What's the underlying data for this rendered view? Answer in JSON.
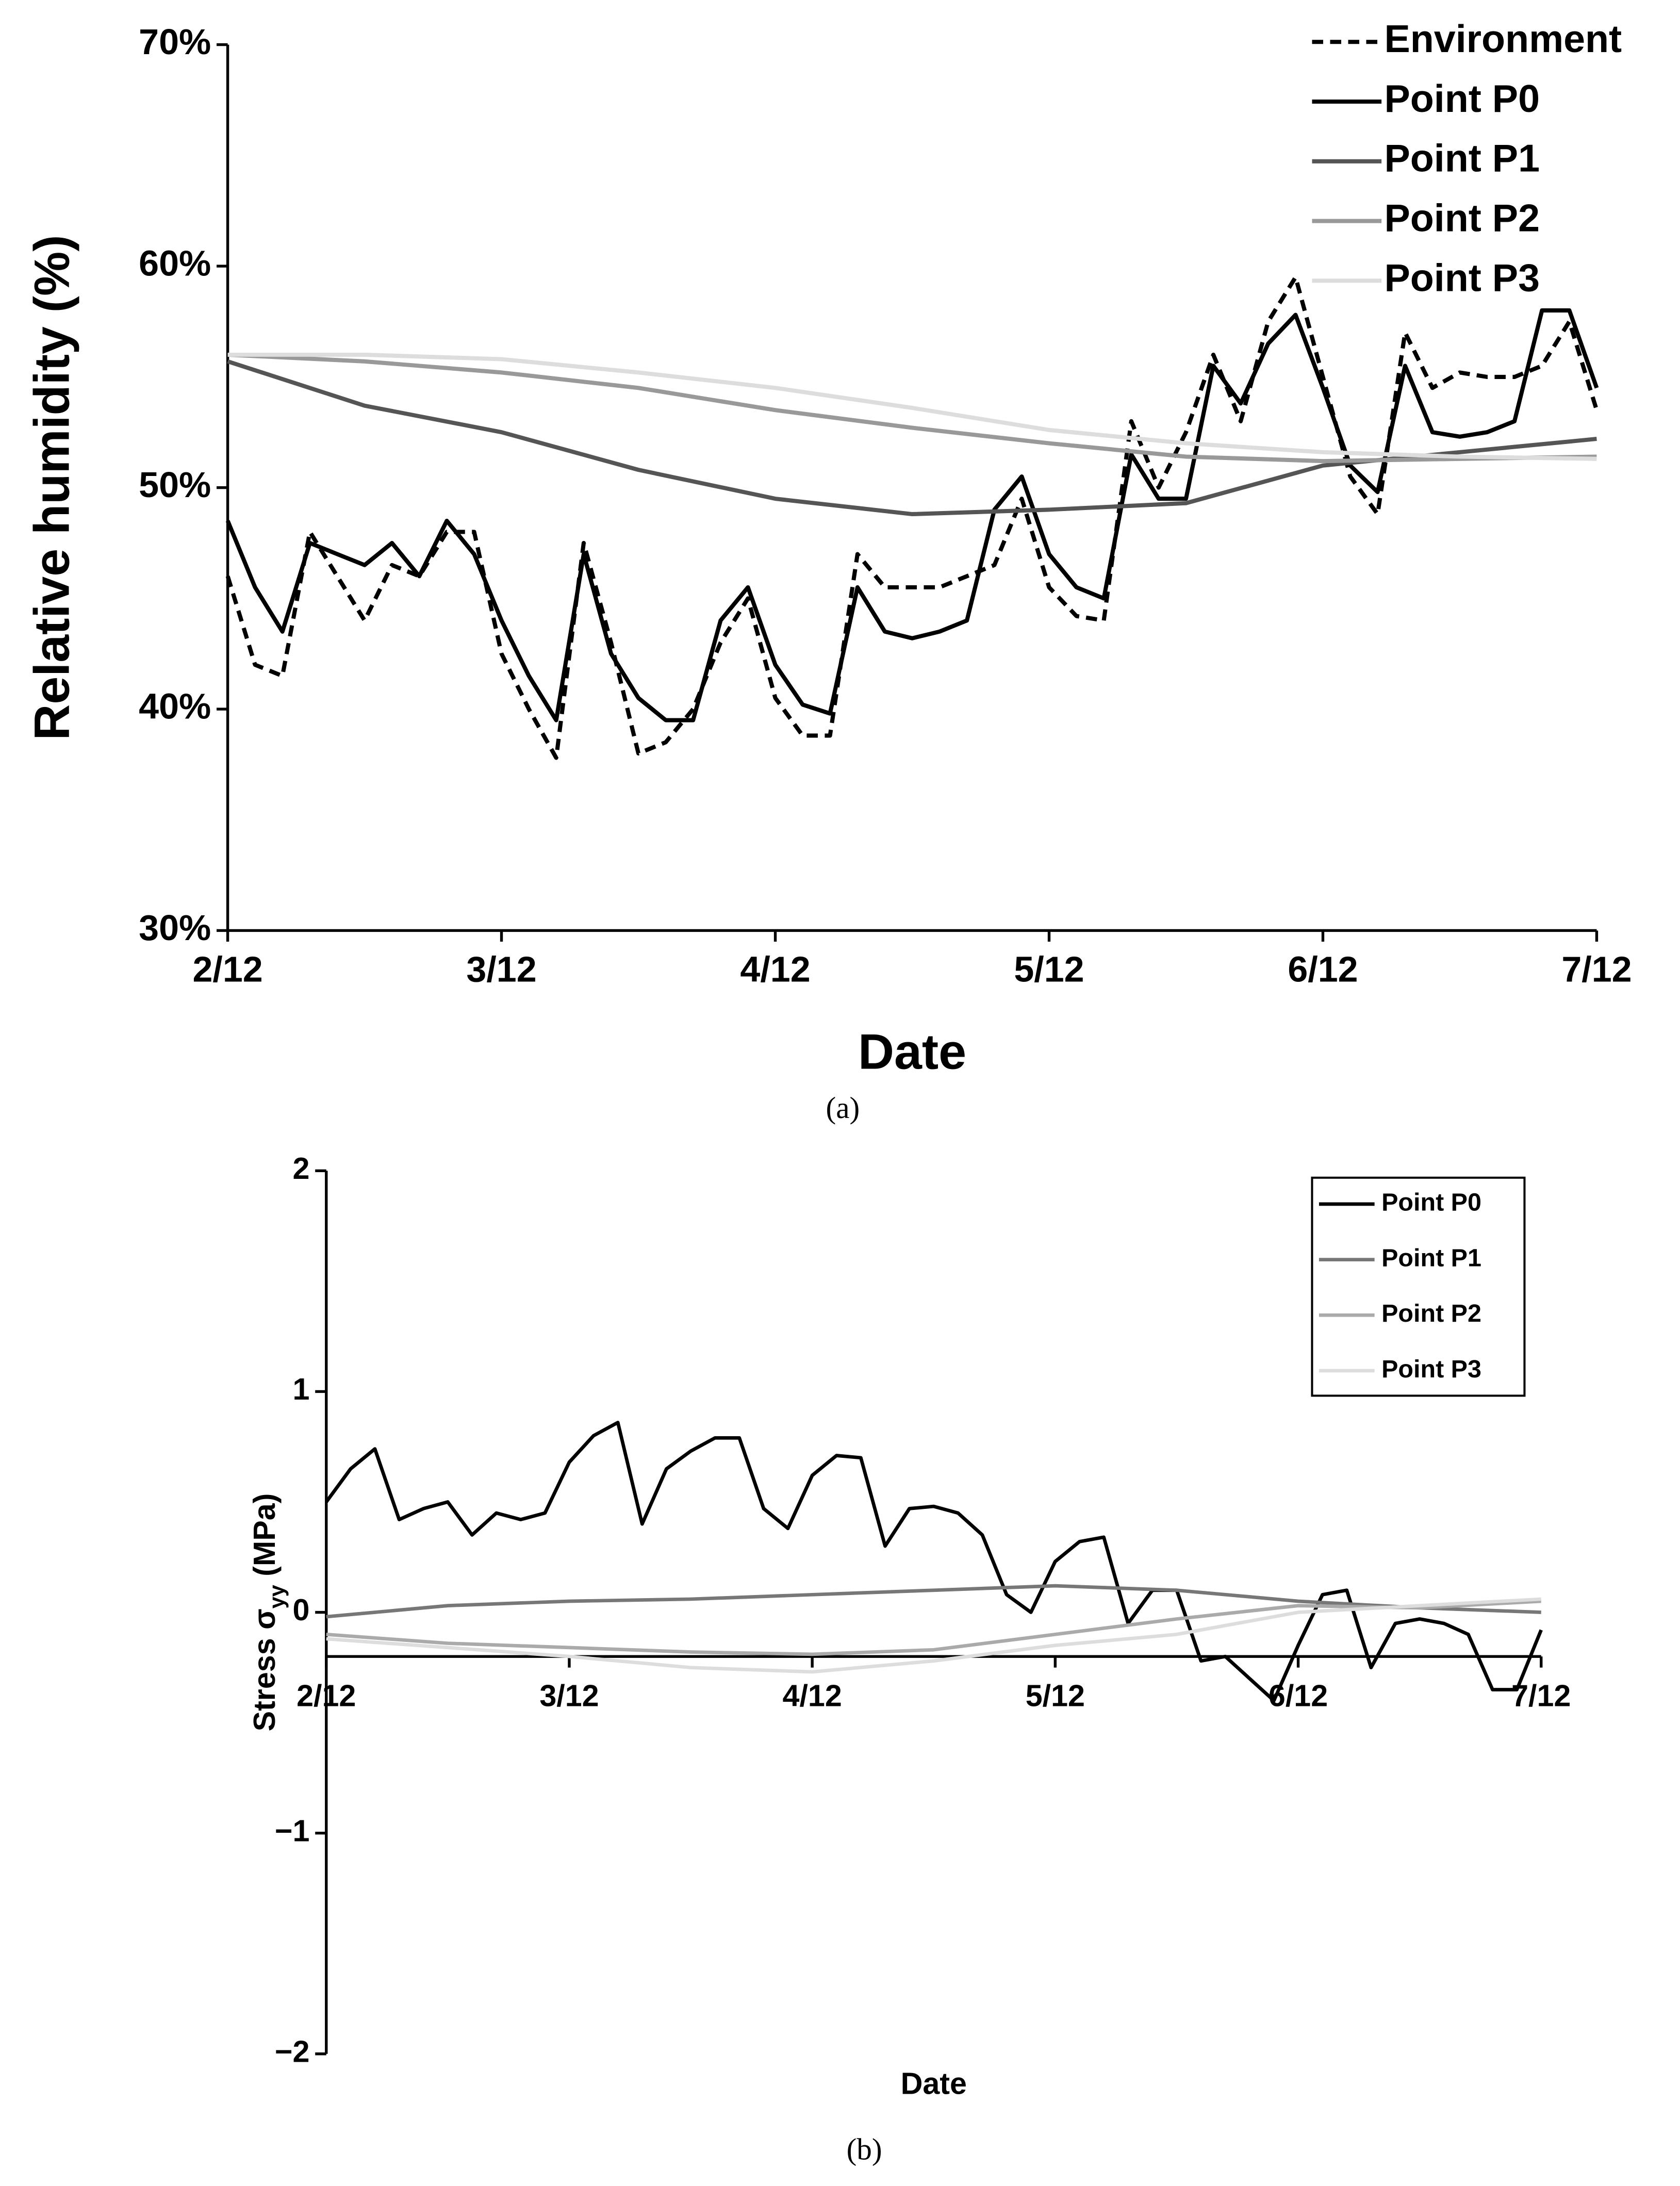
{
  "chart_data": [
    {
      "type": "line",
      "caption": "(a)",
      "xlabel": "Date",
      "ylabel": "Relative humidity (%)",
      "x": [
        0,
        0.1,
        0.2,
        0.3,
        0.4,
        0.5,
        0.6,
        0.7,
        0.8,
        0.9,
        1.0,
        1.1,
        1.2,
        1.3,
        1.4,
        1.5,
        1.6,
        1.7,
        1.8,
        1.9,
        2.0,
        2.1,
        2.2,
        2.3,
        2.4,
        2.5,
        2.6,
        2.7,
        2.8,
        2.9,
        3.0,
        3.1,
        3.2,
        3.3,
        3.4,
        3.5,
        3.6,
        3.7,
        3.8,
        3.9,
        4.0,
        4.1,
        4.2,
        4.3,
        4.4,
        4.5,
        4.6,
        4.7,
        4.8,
        4.9,
        5.0
      ],
      "xlim": [
        0,
        5
      ],
      "xticks": [
        {
          "value": 0,
          "label": "2/12"
        },
        {
          "value": 1,
          "label": "3/12"
        },
        {
          "value": 2,
          "label": "4/12"
        },
        {
          "value": 3,
          "label": "5/12"
        },
        {
          "value": 4,
          "label": "6/12"
        },
        {
          "value": 5,
          "label": "7/12"
        }
      ],
      "ylim": [
        30,
        70
      ],
      "yticks": [
        {
          "value": 30,
          "label": "30%"
        },
        {
          "value": 40,
          "label": "40%"
        },
        {
          "value": 50,
          "label": "50%"
        },
        {
          "value": 60,
          "label": "60%"
        },
        {
          "value": 70,
          "label": "70%"
        }
      ],
      "legend": "top-right",
      "legend_box": false,
      "series": [
        {
          "name": "Environment",
          "color": "#000000",
          "dash": true,
          "values": [
            46,
            42,
            41.5,
            48,
            46,
            44,
            46.5,
            46,
            48,
            48,
            42.5,
            40,
            37.8,
            47.5,
            43,
            38,
            38.5,
            40,
            43,
            45,
            40.5,
            38.8,
            38.8,
            47,
            45.5,
            45.5,
            45.5,
            46,
            46.5,
            49.5,
            45.5,
            44.2,
            44,
            53,
            50,
            52.5,
            56,
            53,
            57.5,
            59.5,
            55,
            50.5,
            48.8,
            57,
            54.5,
            55.2,
            55,
            55,
            55.5,
            57.5,
            53.5
          ]
        },
        {
          "name": "Point P0",
          "color": "#000000",
          "values": [
            48.5,
            45.5,
            43.5,
            47.5,
            47,
            46.5,
            47.5,
            46,
            48.5,
            47,
            44,
            41.5,
            39.5,
            47,
            42.5,
            40.5,
            39.5,
            39.5,
            44,
            45.5,
            42,
            40.2,
            39.8,
            45.5,
            43.5,
            43.2,
            43.5,
            44,
            49,
            50.5,
            47,
            45.5,
            45,
            51.5,
            49.5,
            49.5,
            55.5,
            53.8,
            56.5,
            57.8,
            54.5,
            51,
            49.8,
            55.5,
            52.5,
            52.3,
            52.5,
            53,
            58,
            58,
            54.5
          ]
        },
        {
          "name": "Point P1",
          "color": "#555555",
          "x": [
            0,
            0.5,
            1,
            1.5,
            2,
            2.5,
            3,
            3.5,
            4,
            4.5,
            5
          ],
          "values": [
            55.7,
            53.7,
            52.5,
            50.8,
            49.5,
            48.8,
            49,
            49.3,
            51,
            51.6,
            52.2
          ]
        },
        {
          "name": "Point P2",
          "color": "#999999",
          "x": [
            0,
            0.5,
            1,
            1.5,
            2,
            2.5,
            3,
            3.5,
            4,
            4.5,
            5
          ],
          "values": [
            56,
            55.7,
            55.2,
            54.5,
            53.5,
            52.7,
            52,
            51.4,
            51.2,
            51.3,
            51.4
          ]
        },
        {
          "name": "Point P3",
          "color": "#dddddd",
          "x": [
            0,
            0.5,
            1,
            1.5,
            2,
            2.5,
            3,
            3.5,
            4,
            4.5,
            5
          ],
          "values": [
            56,
            56,
            55.8,
            55.2,
            54.5,
            53.6,
            52.6,
            52,
            51.6,
            51.4,
            51.3
          ]
        }
      ]
    },
    {
      "type": "line",
      "caption": "(b)",
      "xlabel": "Date",
      "ylabel": [
        "Stress σ",
        "yy",
        " (MPa)"
      ],
      "x": [
        0,
        0.1,
        0.2,
        0.3,
        0.4,
        0.5,
        0.6,
        0.7,
        0.8,
        0.9,
        1.0,
        1.1,
        1.2,
        1.3,
        1.4,
        1.5,
        1.6,
        1.7,
        1.8,
        1.9,
        2.0,
        2.1,
        2.2,
        2.3,
        2.4,
        2.5,
        2.6,
        2.7,
        2.8,
        2.9,
        3.0,
        3.1,
        3.2,
        3.3,
        3.4,
        3.5,
        3.6,
        3.7,
        3.8,
        3.9,
        4.0,
        4.1,
        4.2,
        4.3,
        4.4,
        4.5,
        4.6,
        4.7,
        4.8,
        4.9,
        5.0
      ],
      "xlim": [
        0,
        5
      ],
      "xticks": [
        {
          "value": 0,
          "label": "2/12"
        },
        {
          "value": 1,
          "label": "3/12"
        },
        {
          "value": 2,
          "label": "4/12"
        },
        {
          "value": 3,
          "label": "5/12"
        },
        {
          "value": 4,
          "label": "6/12"
        },
        {
          "value": 5,
          "label": "7/12"
        }
      ],
      "ylim": [
        -2,
        2
      ],
      "yticks": [
        {
          "value": -2,
          "label": "−2"
        },
        {
          "value": -1,
          "label": "−1"
        },
        0,
        1,
        2
      ],
      "xaxis_crossing": -0.2,
      "legend": "top-right",
      "legend_box": true,
      "series": [
        {
          "name": "Point P0",
          "color": "#000000",
          "values": [
            0.5,
            0.65,
            0.74,
            0.42,
            0.47,
            0.5,
            0.35,
            0.45,
            0.42,
            0.45,
            0.68,
            0.8,
            0.86,
            0.4,
            0.65,
            0.73,
            0.79,
            0.79,
            0.47,
            0.38,
            0.62,
            0.71,
            0.7,
            0.3,
            0.47,
            0.48,
            0.45,
            0.35,
            0.08,
            0,
            0.23,
            0.32,
            0.34,
            -0.05,
            0.1,
            0.1,
            -0.22,
            -0.2,
            -0.3,
            -0.4,
            -0.15,
            0.08,
            0.1,
            -0.25,
            -0.05,
            -0.03,
            -0.05,
            -0.1,
            -0.35,
            -0.35,
            -0.08
          ]
        },
        {
          "name": "Point P1",
          "color": "#777777",
          "x": [
            0,
            0.5,
            1,
            1.5,
            2,
            2.5,
            3,
            3.5,
            4,
            4.5,
            5
          ],
          "values": [
            -0.02,
            0.03,
            0.05,
            0.06,
            0.08,
            0.1,
            0.12,
            0.1,
            0.05,
            0.02,
            0
          ]
        },
        {
          "name": "Point P2",
          "color": "#aaaaaa",
          "x": [
            0,
            0.5,
            1,
            1.5,
            2,
            2.5,
            3,
            3.5,
            4,
            4.5,
            5
          ],
          "values": [
            -0.1,
            -0.14,
            -0.16,
            -0.18,
            -0.19,
            -0.17,
            -0.1,
            -0.03,
            0.03,
            0.02,
            0.05
          ]
        },
        {
          "name": "Point P3",
          "color": "#dddddd",
          "x": [
            0,
            0.5,
            1,
            1.5,
            2,
            2.5,
            3,
            3.5,
            4,
            4.5,
            5
          ],
          "values": [
            -0.12,
            -0.16,
            -0.2,
            -0.25,
            -0.27,
            -0.22,
            -0.15,
            -0.1,
            0,
            0.03,
            0.06
          ]
        }
      ]
    }
  ]
}
